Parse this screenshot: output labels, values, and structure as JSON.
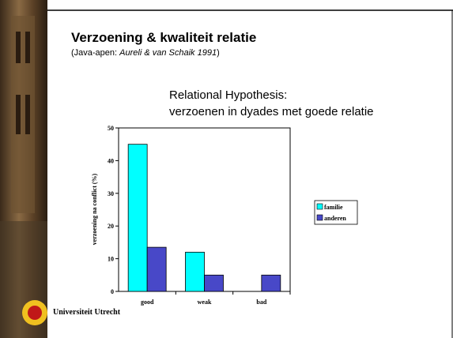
{
  "slide_title": "Verzoening & kwaliteit relatie",
  "subtitle_prefix": "(Java-apen: ",
  "subtitle_ref": "Aureli & van Schaik 1991",
  "subtitle_suffix": ")",
  "hypothesis_line1": "Relational Hypothesis:",
  "hypothesis_line2": "verzoenen in dyades met goede relatie",
  "logo_text": "Universiteit Utrecht",
  "chart_data": {
    "type": "bar",
    "y_label": "verzoening na conflict (%)",
    "categories": [
      "good",
      "weak",
      "bad"
    ],
    "series": [
      {
        "name": "familie",
        "color": "#00ffff",
        "values": [
          45,
          12,
          0
        ]
      },
      {
        "name": "anderen",
        "color": "#4848c8",
        "values": [
          13.5,
          5,
          5
        ]
      }
    ],
    "ylim": [
      0,
      50
    ],
    "yticks": [
      0,
      10,
      20,
      30,
      40,
      50
    ],
    "legend": "right"
  }
}
